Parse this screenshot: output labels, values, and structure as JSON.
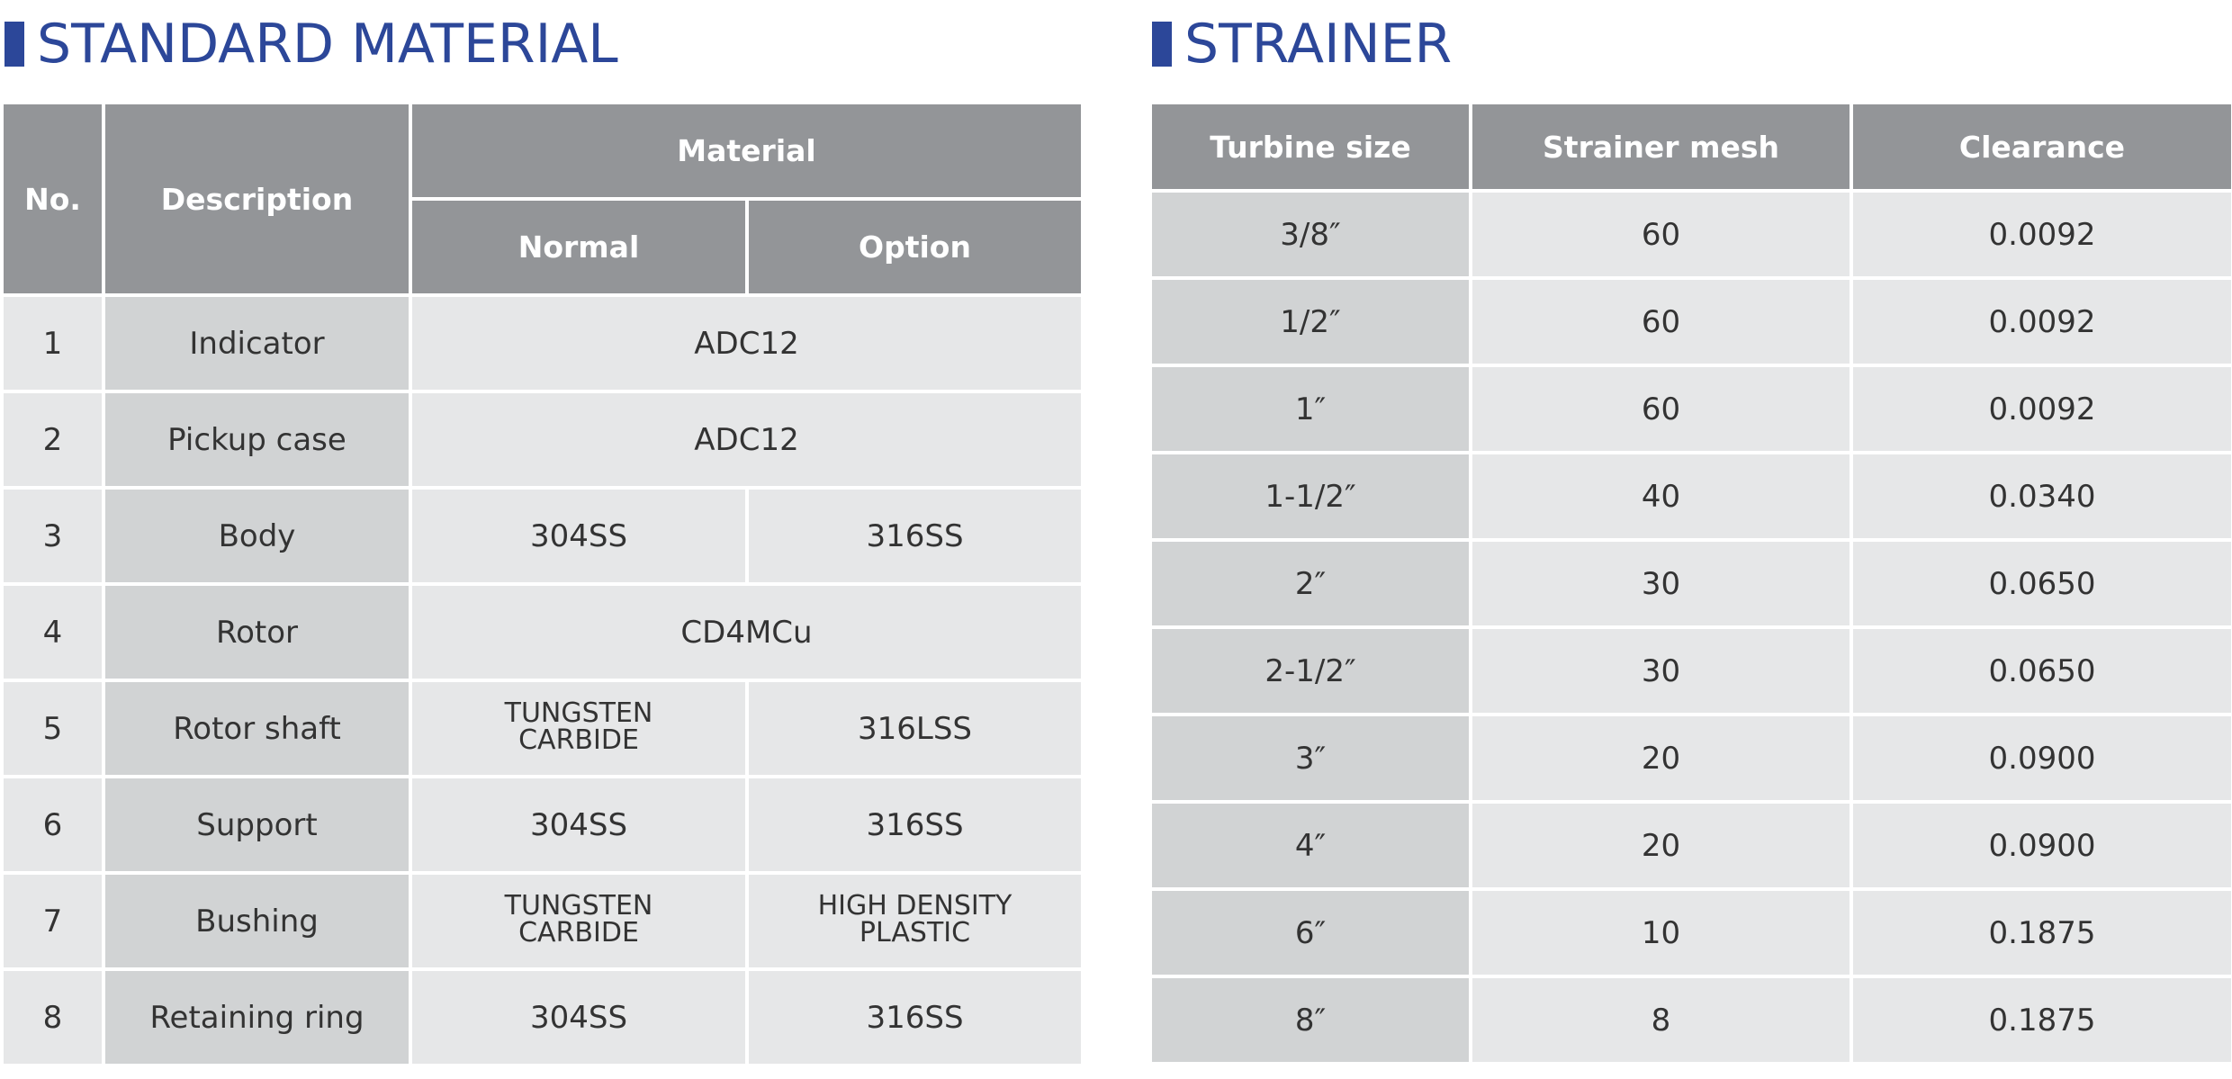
{
  "standard_material": {
    "title": "STANDARD MATERIAL",
    "headers": {
      "no": "No.",
      "description": "Description",
      "material": "Material",
      "normal": "Normal",
      "option": "Option"
    },
    "rows": [
      {
        "no": "1",
        "description": "Indicator",
        "material": "ADC12"
      },
      {
        "no": "2",
        "description": "Pickup case",
        "material": "ADC12"
      },
      {
        "no": "3",
        "description": "Body",
        "normal": "304SS",
        "option": "316SS"
      },
      {
        "no": "4",
        "description": "Rotor",
        "material": "CD4MCu"
      },
      {
        "no": "5",
        "description": "Rotor shaft",
        "normal": "TUNGSTEN CARBIDE",
        "option": "316LSS"
      },
      {
        "no": "6",
        "description": "Support",
        "normal": "304SS",
        "option": "316SS"
      },
      {
        "no": "7",
        "description": "Bushing",
        "normal": "TUNGSTEN CARBIDE",
        "option": "HIGH DENSITY PLASTIC"
      },
      {
        "no": "8",
        "description": "Retaining ring",
        "normal": "304SS",
        "option": "316SS"
      }
    ]
  },
  "strainer": {
    "title": "STRAINER",
    "headers": [
      "Turbine size",
      "Strainer mesh",
      "Clearance"
    ],
    "rows": [
      [
        "3/8″",
        "60",
        "0.0092"
      ],
      [
        "1/2″",
        "60",
        "0.0092"
      ],
      [
        "1″",
        "60",
        "0.0092"
      ],
      [
        "1-1/2″",
        "40",
        "0.0340"
      ],
      [
        "2″",
        "30",
        "0.0650"
      ],
      [
        "2-1/2″",
        "30",
        "0.0650"
      ],
      [
        "3″",
        "20",
        "0.0900"
      ],
      [
        "4″",
        "20",
        "0.0900"
      ],
      [
        "6″",
        "10",
        "0.1875"
      ],
      [
        "8″",
        "8",
        "0.1875"
      ]
    ]
  }
}
